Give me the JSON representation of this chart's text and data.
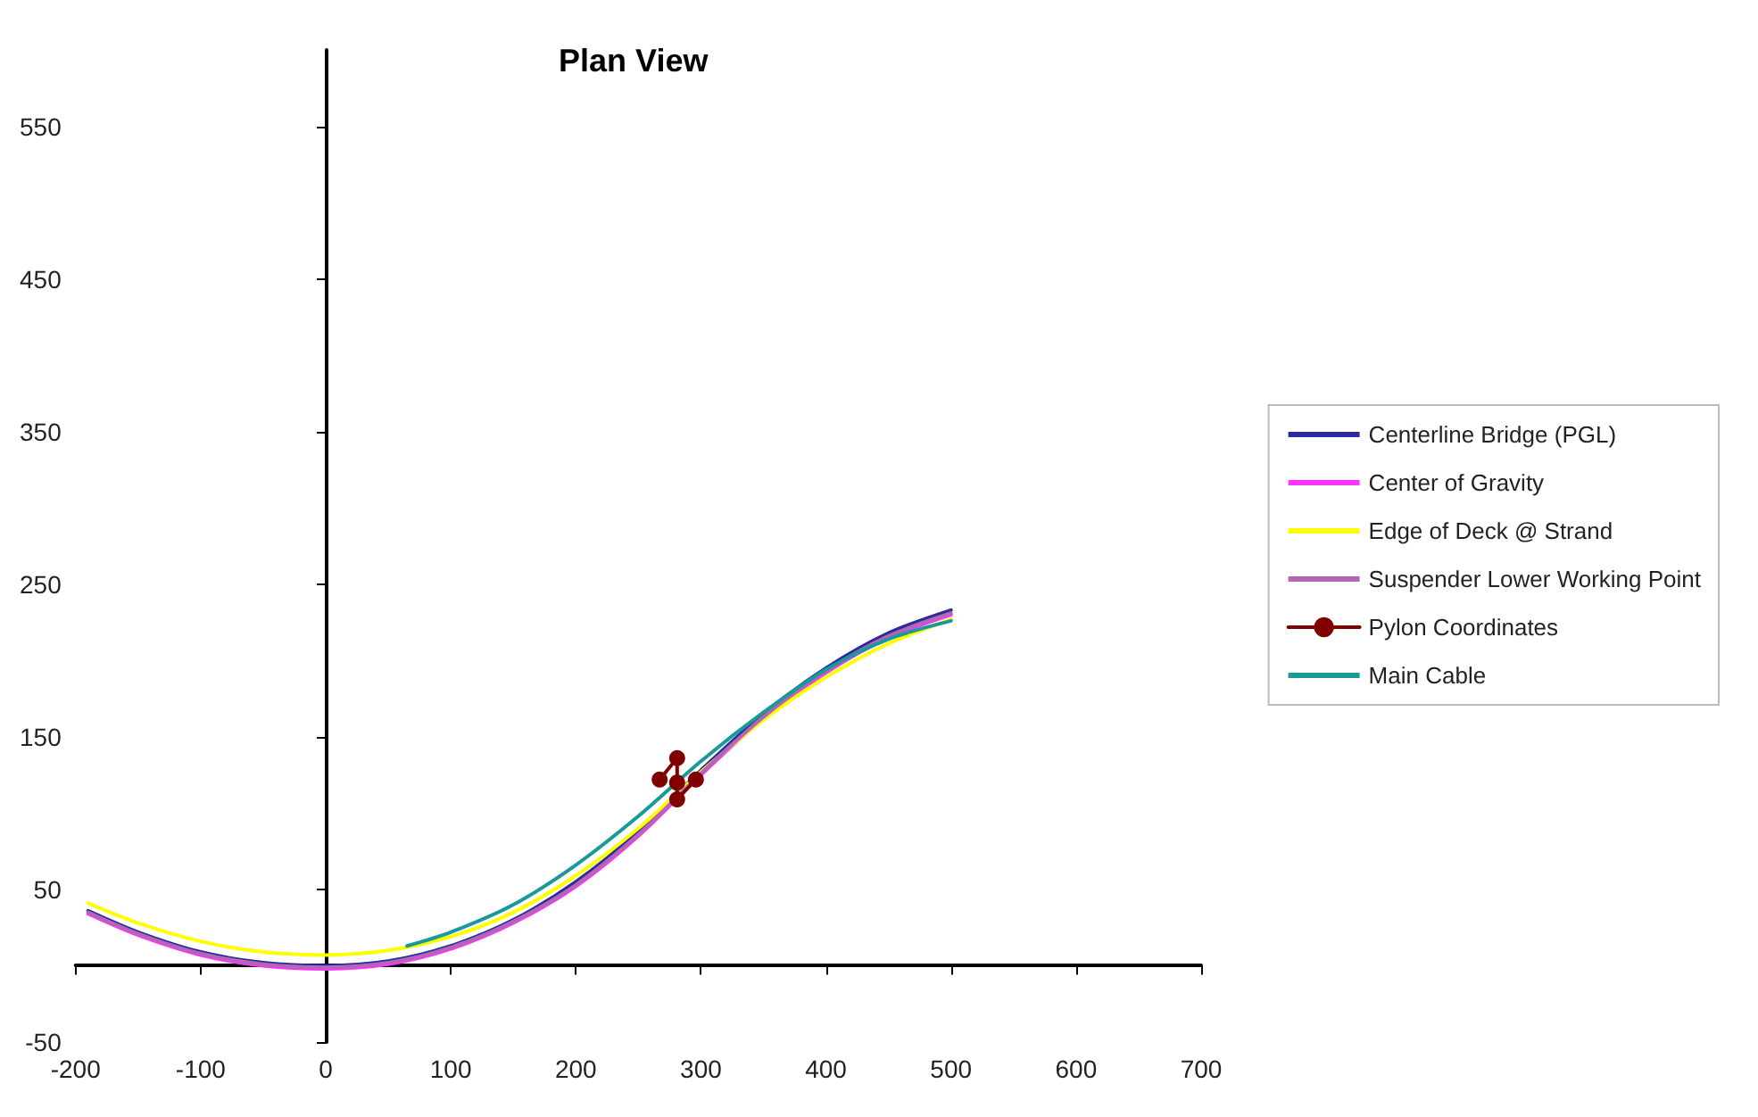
{
  "chart_data": {
    "type": "line",
    "title": "Plan View",
    "xlim": [
      -200,
      700
    ],
    "xticks": [
      -200,
      -100,
      0,
      100,
      200,
      300,
      400,
      500,
      600,
      700
    ],
    "ylim": [
      -50,
      600
    ],
    "yticks": [
      -50,
      50,
      150,
      250,
      350,
      450,
      550
    ],
    "legend": "right",
    "marker": "none",
    "line_style": "solid",
    "series": [
      {
        "name": "Centerline Bridge (PGL)",
        "color": "#2b2b9e",
        "x": [
          -190,
          -150,
          -100,
          -50,
          0,
          50,
          100,
          150,
          200,
          250,
          300,
          350,
          400,
          450,
          500
        ],
        "values": [
          36,
          22,
          9,
          2,
          0,
          3,
          13,
          30,
          55,
          88,
          128,
          165,
          195,
          218,
          233
        ]
      },
      {
        "name": "Center of Gravity",
        "color": "#ff33ff",
        "x": [
          -190,
          -150,
          -100,
          -50,
          0,
          50,
          100,
          150,
          200,
          250,
          300,
          350,
          400,
          450,
          500
        ],
        "values": [
          34,
          20,
          7,
          0,
          -2,
          1,
          11,
          28,
          52,
          85,
          125,
          162,
          192,
          215,
          230
        ]
      },
      {
        "name": "Edge of Deck @ Strand",
        "color": "#ffff00",
        "x": [
          -190,
          -150,
          -100,
          -50,
          0,
          50,
          100,
          150,
          200,
          250,
          300,
          350,
          400,
          450,
          500
        ],
        "values": [
          41,
          28,
          16,
          9,
          7,
          10,
          19,
          35,
          59,
          90,
          127,
          161,
          189,
          211,
          227
        ]
      },
      {
        "name": "Suspender Lower Working Point",
        "color": "#b366b3",
        "x": [
          -190,
          -150,
          -100,
          -50,
          0,
          50,
          100,
          150,
          200,
          250,
          300,
          350,
          400,
          450,
          500
        ],
        "values": [
          35,
          21,
          8,
          1,
          -1,
          2,
          12,
          29,
          53,
          86,
          126,
          163,
          193,
          216,
          231
        ]
      },
      {
        "name": "Pylon Coordinates",
        "color": "#800000",
        "type": "line",
        "marker": "circle",
        "x": [
          267,
          281,
          281,
          281,
          296
        ],
        "values": [
          122,
          136,
          120,
          109,
          122
        ]
      },
      {
        "name": "Main Cable",
        "color": "#1a9999",
        "x": [
          65,
          100,
          150,
          200,
          250,
          300,
          350,
          400,
          450,
          500
        ],
        "values": [
          13,
          22,
          40,
          66,
          98,
          134,
          166,
          194,
          214,
          226
        ]
      }
    ]
  }
}
